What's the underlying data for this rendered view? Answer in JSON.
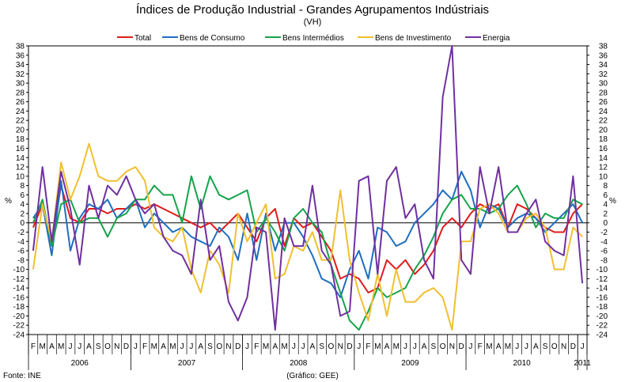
{
  "chart_data": {
    "type": "line",
    "title": "Índices de Produção Industrial - Grandes Agrupamentos Indústriais",
    "subtitle": "(VH)",
    "ylabel_left": "%",
    "ylabel_right": "%",
    "ylim": [
      -24,
      38
    ],
    "yticks": [
      38,
      36,
      34,
      32,
      30,
      28,
      26,
      24,
      22,
      20,
      18,
      16,
      14,
      12,
      10,
      8,
      6,
      4,
      2,
      0,
      -2,
      -4,
      -6,
      -8,
      -10,
      -12,
      -14,
      -16,
      -18,
      -20,
      -22,
      -24
    ],
    "month_labels": [
      "F",
      "M",
      "A",
      "M",
      "J",
      "J",
      "A",
      "S",
      "O",
      "N",
      "D",
      "J",
      "F",
      "M",
      "A",
      "M",
      "J",
      "J",
      "A",
      "S",
      "O",
      "N",
      "D",
      "J",
      "F",
      "M",
      "A",
      "M",
      "J",
      "J",
      "A",
      "S",
      "O",
      "N",
      "D",
      "J",
      "F",
      "M",
      "A",
      "M",
      "J",
      "J",
      "A",
      "S",
      "O",
      "N",
      "D",
      "J",
      "F",
      "M",
      "A",
      "M",
      "J",
      "J",
      "A",
      "S",
      "O",
      "N",
      "D",
      "J"
    ],
    "years": [
      {
        "label": "2006",
        "start": 0,
        "end": 10
      },
      {
        "label": "2007",
        "start": 11,
        "end": 22
      },
      {
        "label": "2008",
        "start": 23,
        "end": 34
      },
      {
        "label": "2009",
        "start": 35,
        "end": 46
      },
      {
        "label": "2010",
        "start": 47,
        "end": 58
      },
      {
        "label": "2011",
        "start": 59,
        "end": 59
      }
    ],
    "legend": [
      "Total",
      "Bens de Consumo",
      "Bens Intermédios",
      "Bens de Investimento",
      "Energia"
    ],
    "series": [
      {
        "name": "Total",
        "color": "#e01b1b",
        "values": [
          -1,
          4,
          -4,
          8,
          1,
          0,
          3,
          3,
          2,
          3,
          3,
          4,
          3,
          4,
          3,
          2,
          1,
          0,
          -1,
          0,
          -2,
          0,
          2,
          -1,
          -4,
          1,
          3,
          -5,
          1,
          -1,
          0,
          -3,
          -6,
          -12,
          -11,
          -12,
          -15,
          -14,
          -8,
          -10,
          -8,
          -11,
          -9,
          -6,
          -1,
          1,
          -1,
          2,
          4,
          3,
          4,
          -1,
          4,
          3,
          1,
          -1,
          -2,
          -2,
          2,
          4
        ]
      },
      {
        "name": "Bens de Consumo",
        "color": "#1f6fbf",
        "values": [
          1,
          4,
          -7,
          9,
          -6,
          1,
          4,
          3,
          5,
          1,
          3,
          5,
          -1,
          2,
          0,
          -2,
          -1,
          -3,
          -4,
          -5,
          -1,
          -3,
          -8,
          2,
          -8,
          2,
          -6,
          0,
          0,
          -3,
          -7,
          -12,
          -13,
          -16,
          -10,
          -6,
          -12,
          -1,
          -2,
          -5,
          -4,
          0,
          2,
          4,
          7,
          5,
          11,
          7,
          -1,
          4,
          3,
          -1,
          1,
          2,
          1,
          -2,
          0,
          2,
          4,
          0
        ]
      },
      {
        "name": "Bens Intermédios",
        "color": "#16a34a",
        "values": [
          0,
          5,
          -5,
          4,
          5,
          0,
          1,
          1,
          -3,
          1,
          2,
          5,
          5,
          8,
          6,
          6,
          0,
          10,
          3,
          10,
          6,
          5,
          6,
          7,
          -2,
          1,
          -2,
          -6,
          1,
          3,
          0,
          -2,
          -9,
          -15,
          -21,
          -23,
          -19,
          -14,
          -16,
          -15,
          -14,
          -10,
          -7,
          -3,
          2,
          5,
          6,
          3,
          3,
          2,
          3,
          6,
          8,
          4,
          -1,
          2,
          1,
          1,
          5,
          4
        ]
      },
      {
        "name": "Bens de Investimento",
        "color": "#f0c030",
        "values": [
          -10,
          4,
          -4,
          13,
          5,
          10,
          17,
          10,
          9,
          9,
          11,
          12,
          9,
          -1,
          -3,
          -4,
          -1,
          -10,
          -15,
          -6,
          -9,
          -15,
          2,
          -4,
          0,
          4,
          -12,
          -11,
          -5,
          -6,
          -2,
          -8,
          -8,
          7,
          -8,
          -15,
          -21,
          -11,
          -20,
          -10,
          -17,
          -17,
          -15,
          -14,
          -16,
          -23,
          -4,
          -4,
          3,
          4,
          2,
          -2,
          -2,
          1,
          2,
          -1,
          -10,
          -10,
          -1,
          -3
        ]
      },
      {
        "name": "Energia",
        "color": "#7030a0",
        "values": [
          -6,
          12,
          -4,
          11,
          3,
          -9,
          8,
          1,
          8,
          6,
          10,
          5,
          2,
          4,
          -3,
          -6,
          -7,
          -11,
          5,
          -8,
          -5,
          -17,
          -21,
          -16,
          -1,
          -2,
          -23,
          1,
          -5,
          -5,
          8,
          -6,
          -9,
          -20,
          -19,
          9,
          10,
          -11,
          9,
          12,
          1,
          4,
          -8,
          -12,
          27,
          38,
          -8,
          -11,
          12,
          2,
          12,
          -2,
          -2,
          2,
          5,
          -4,
          -6,
          -7,
          10,
          -13
        ]
      }
    ]
  },
  "footer": {
    "source": "Fonte: INE",
    "credit": "(Gráfico: GEE)"
  }
}
